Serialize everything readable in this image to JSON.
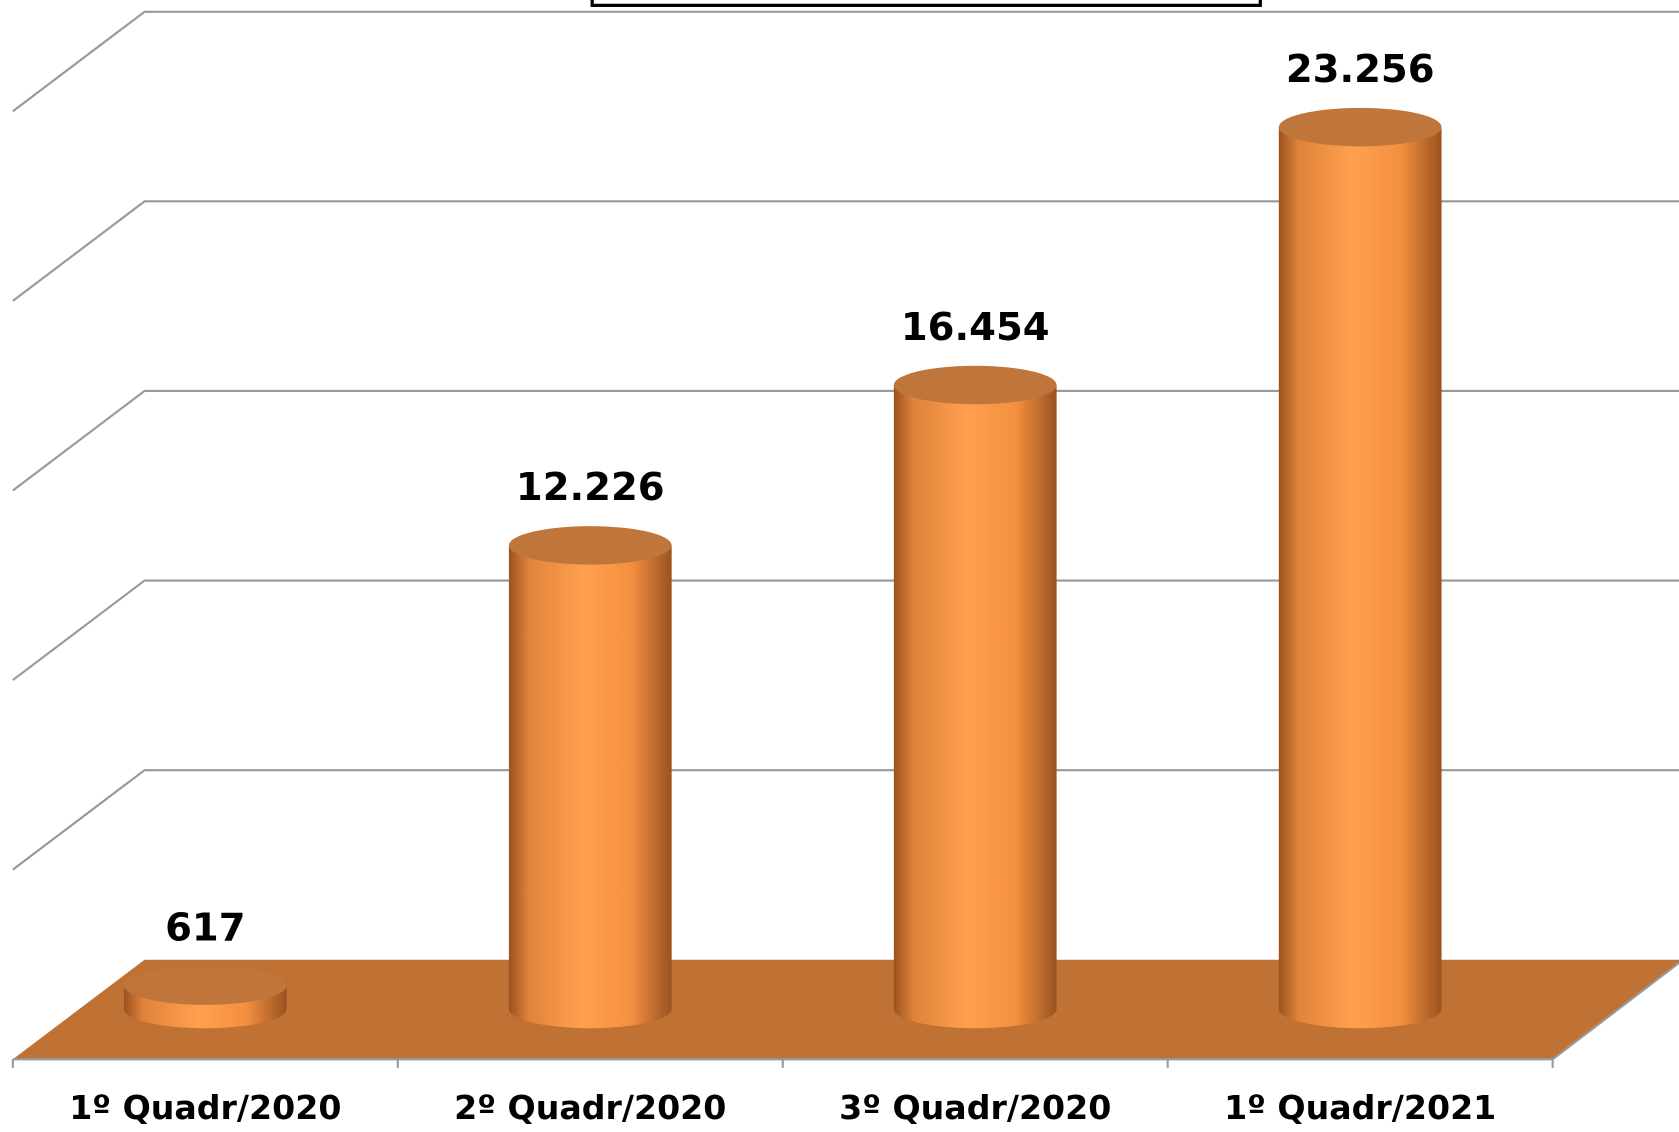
{
  "chart_data": {
    "type": "bar3d",
    "categories": [
      "1º Quadr/2020",
      "2º Quadr/2020",
      "3º Quadr/2020",
      "1º Quadr/2021"
    ],
    "values": [
      617,
      12226,
      16454,
      23256
    ],
    "value_labels": [
      "617",
      "12.226",
      "16.454",
      "23.256"
    ],
    "color": "#f79646",
    "ylim": [
      0,
      25000
    ],
    "yticks": [
      0,
      5000,
      10000,
      15000,
      20000,
      25000
    ],
    "grid": true
  }
}
